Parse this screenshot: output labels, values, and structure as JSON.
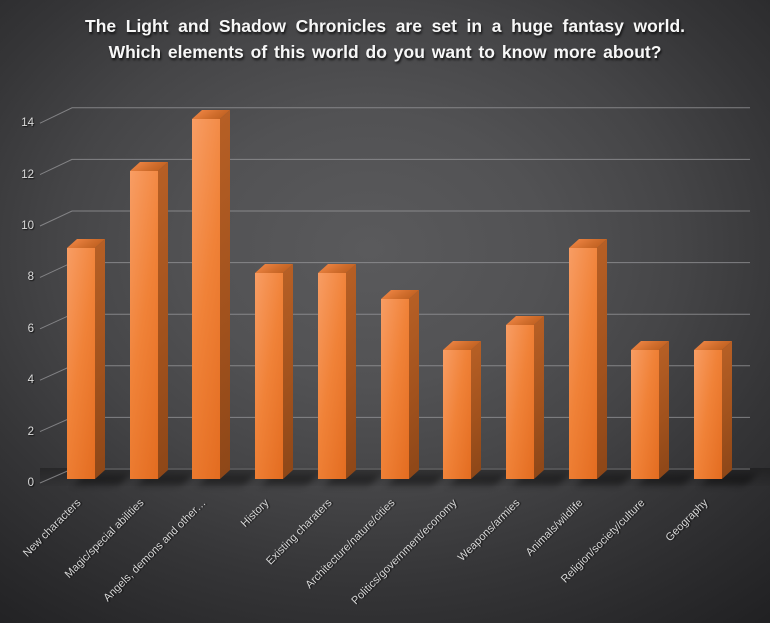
{
  "chart_data": {
    "type": "bar",
    "style": "3d-column",
    "title": "The Light and Shadow Chronicles are set in a huge fantasy world. Which elements of this world do you want to know more about?",
    "categories": [
      "New characters",
      "Magic/special abilities",
      "Angels, demons and other…",
      "History",
      "Existing charaters",
      "Architecture/nature/cities",
      "Politics/government/economy",
      "Weapons/armies",
      "Animals/wildlife",
      "Religion/society/culture",
      "Geography"
    ],
    "values": [
      9,
      12,
      14,
      8,
      8,
      7,
      5,
      6,
      9,
      5,
      5
    ],
    "xlabel": "",
    "ylabel": "",
    "ylim": [
      0,
      14
    ],
    "yticks": [
      0,
      2,
      4,
      6,
      8,
      10,
      12,
      14
    ],
    "legend": "none",
    "grid": true,
    "x_label_rotation_deg": 45
  },
  "colors": {
    "background_center": "#5a5a5c",
    "background_edge": "#212123",
    "bar_front_light": "#f89d64",
    "bar_front_dark": "#e36c20",
    "bar_side": "#a2521d",
    "bar_top": "#d06d2c",
    "gridline": "#98989b",
    "title_text": "#f7f7f7",
    "axis_text": "#d9d9d9"
  }
}
